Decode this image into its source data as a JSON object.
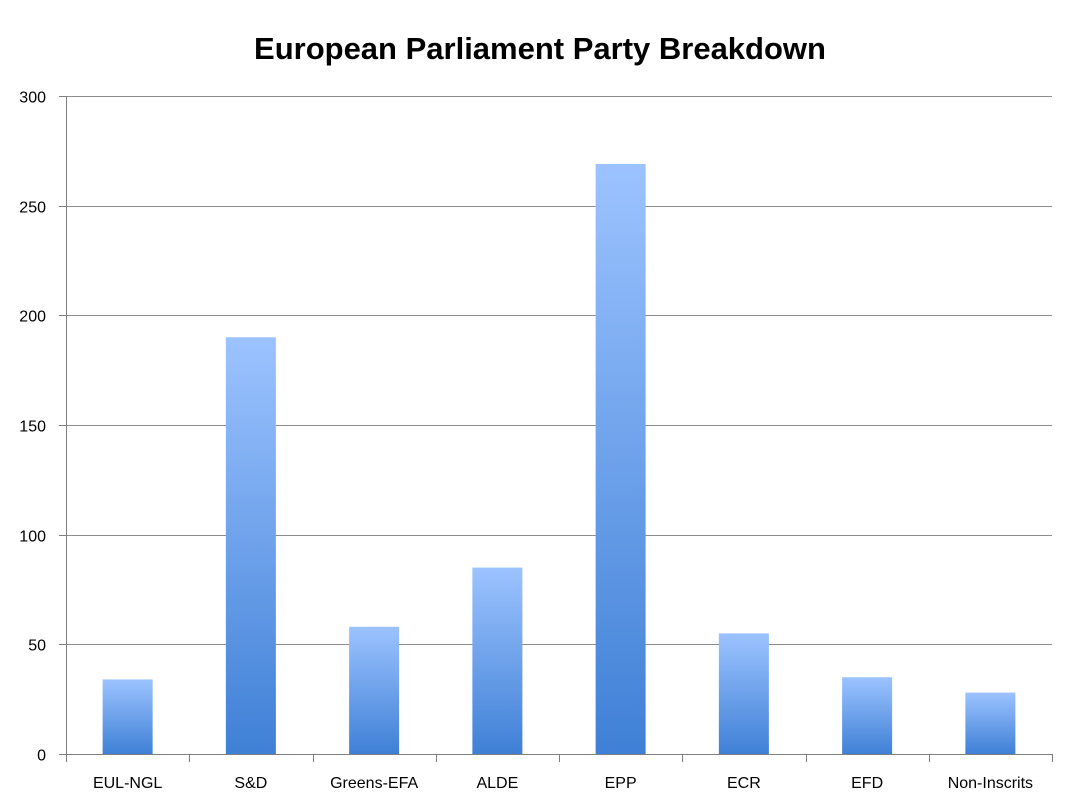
{
  "chart_data": {
    "type": "bar",
    "title": "European Parliament Party Breakdown",
    "xlabel": "",
    "ylabel": "",
    "categories": [
      "EUL-NGL",
      "S&D",
      "Greens-EFA",
      "ALDE",
      "EPP",
      "ECR",
      "EFD",
      "Non-Inscrits"
    ],
    "series": [
      {
        "name": "",
        "values": [
          34,
          190,
          58,
          85,
          269,
          55,
          35,
          28
        ]
      }
    ],
    "ylim": [
      0,
      300
    ],
    "yticks": [
      0,
      50,
      100,
      150,
      200,
      250,
      300
    ],
    "grid": true,
    "legend": "none",
    "colors": {
      "bar_top": "#9CC3FF",
      "bar_bottom": "#3F80D6",
      "grid": "#8C8C8C",
      "axis": "#7F7F7F",
      "text": "#000000"
    }
  }
}
